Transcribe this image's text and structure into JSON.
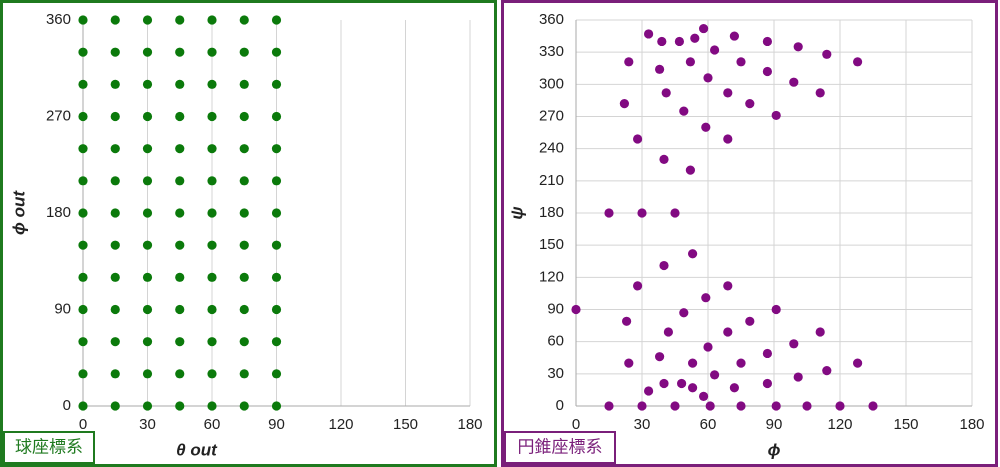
{
  "chart_data": [
    {
      "type": "scatter",
      "xlabel": "θ out",
      "ylabel": "ϕ out",
      "annotation": "球座標系",
      "xlim": [
        0,
        180
      ],
      "xticks": [
        0,
        30,
        60,
        90,
        120,
        150,
        180
      ],
      "ylim": [
        0,
        360
      ],
      "yticks": [
        0,
        90,
        180,
        270,
        360
      ],
      "xgrid": true,
      "ygrid": false,
      "color": "#0b7a0b",
      "frame_color": "#1f7a1f",
      "x": [
        0,
        0,
        0,
        0,
        0,
        0,
        0,
        0,
        0,
        0,
        0,
        0,
        0,
        15,
        15,
        15,
        15,
        15,
        15,
        15,
        15,
        15,
        15,
        15,
        15,
        15,
        30,
        30,
        30,
        30,
        30,
        30,
        30,
        30,
        30,
        30,
        30,
        30,
        30,
        45,
        45,
        45,
        45,
        45,
        45,
        45,
        45,
        45,
        45,
        45,
        45,
        45,
        60,
        60,
        60,
        60,
        60,
        60,
        60,
        60,
        60,
        60,
        60,
        60,
        60,
        75,
        75,
        75,
        75,
        75,
        75,
        75,
        75,
        75,
        75,
        75,
        75,
        75,
        90,
        90,
        90,
        90,
        90,
        90,
        90,
        90,
        90,
        90,
        90,
        90,
        90
      ],
      "values": [
        0,
        30,
        60,
        90,
        120,
        150,
        180,
        210,
        240,
        270,
        300,
        330,
        360,
        0,
        30,
        60,
        90,
        120,
        150,
        180,
        210,
        240,
        270,
        300,
        330,
        360,
        0,
        30,
        60,
        90,
        120,
        150,
        180,
        210,
        240,
        270,
        300,
        330,
        360,
        0,
        30,
        60,
        90,
        120,
        150,
        180,
        210,
        240,
        270,
        300,
        330,
        360,
        0,
        30,
        60,
        90,
        120,
        150,
        180,
        210,
        240,
        270,
        300,
        330,
        360,
        0,
        30,
        60,
        90,
        120,
        150,
        180,
        210,
        240,
        270,
        300,
        330,
        360,
        0,
        30,
        60,
        90,
        120,
        150,
        180,
        210,
        240,
        270,
        300,
        330,
        360
      ]
    },
    {
      "type": "scatter",
      "xlabel": "ϕ",
      "ylabel": "ψ",
      "annotation": "円錐座標系",
      "xlim": [
        0,
        180
      ],
      "xticks": [
        0,
        30,
        60,
        90,
        120,
        150,
        180
      ],
      "ylim": [
        0,
        360
      ],
      "yticks": [
        0,
        30,
        60,
        90,
        120,
        150,
        180,
        210,
        240,
        270,
        300,
        330,
        360
      ],
      "xgrid": true,
      "ygrid": true,
      "color": "#820a82",
      "frame_color": "#7a1f7a",
      "x": [
        0,
        15,
        15,
        23,
        24,
        22,
        24,
        28,
        28,
        30,
        30,
        33,
        33,
        38,
        39,
        38,
        40,
        40,
        40,
        41,
        42,
        45,
        45,
        47,
        48,
        49,
        49,
        52,
        52,
        53,
        53,
        53,
        54,
        58,
        58,
        59,
        59,
        60,
        60,
        61,
        63,
        63,
        69,
        69,
        69,
        69,
        72,
        72,
        75,
        75,
        75,
        79,
        79,
        87,
        87,
        87,
        87,
        91,
        91,
        91,
        101,
        99,
        99,
        101,
        105,
        111,
        111,
        114,
        114,
        120,
        128,
        128,
        135
      ],
      "values": [
        90,
        0,
        180,
        79,
        40,
        282,
        321,
        249,
        112,
        0,
        180,
        14,
        347,
        314,
        340,
        46,
        21,
        131,
        230,
        292,
        69,
        0,
        180,
        340,
        21,
        87,
        275,
        321,
        220,
        142,
        40,
        17,
        343,
        9,
        352,
        260,
        101,
        306,
        55,
        0,
        332,
        29,
        292,
        249,
        112,
        69,
        345,
        17,
        0,
        321,
        40,
        282,
        79,
        340,
        312,
        21,
        49,
        271,
        90,
        0,
        27,
        302,
        58,
        335,
        0,
        292,
        69,
        328,
        33,
        0,
        321,
        40,
        0
      ]
    }
  ]
}
